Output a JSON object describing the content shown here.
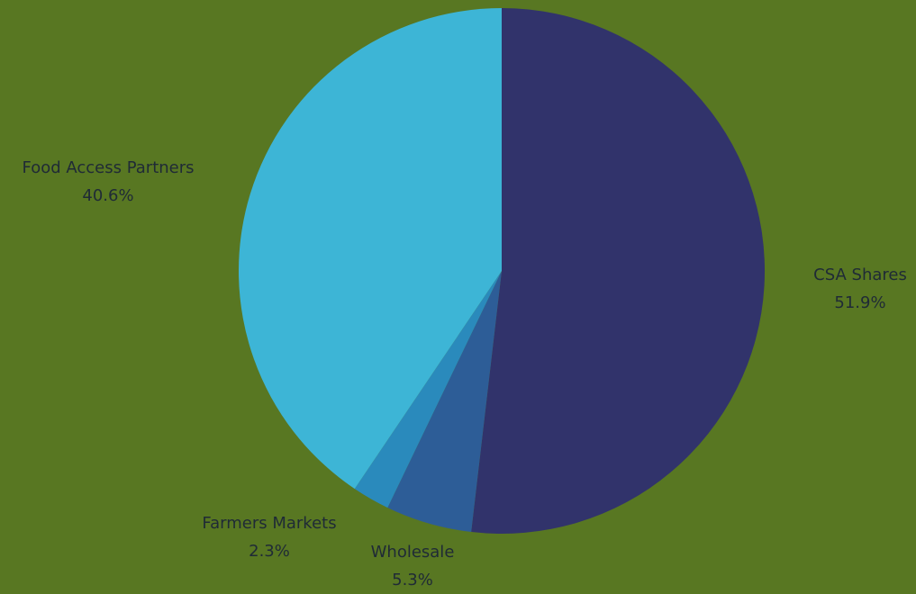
{
  "chart_data": {
    "type": "pie",
    "title": "",
    "start_angle_deg": 0,
    "direction": "clockwise",
    "slices": [
      {
        "label": "CSA Shares",
        "value": 51.9,
        "value_label": "51.9%",
        "color": "#31336b"
      },
      {
        "label": "Wholesale",
        "value": 5.3,
        "value_label": "5.3%",
        "color": "#2d5d97"
      },
      {
        "label": "Farmers Markets",
        "value": 2.3,
        "value_label": "2.3%",
        "color": "#2a8abc"
      },
      {
        "label": "Food Access Partners",
        "value": 40.6,
        "value_label": "40.6%",
        "color": "#3db5d6"
      }
    ],
    "background": "#587722",
    "label_color": "#1f2a36"
  }
}
